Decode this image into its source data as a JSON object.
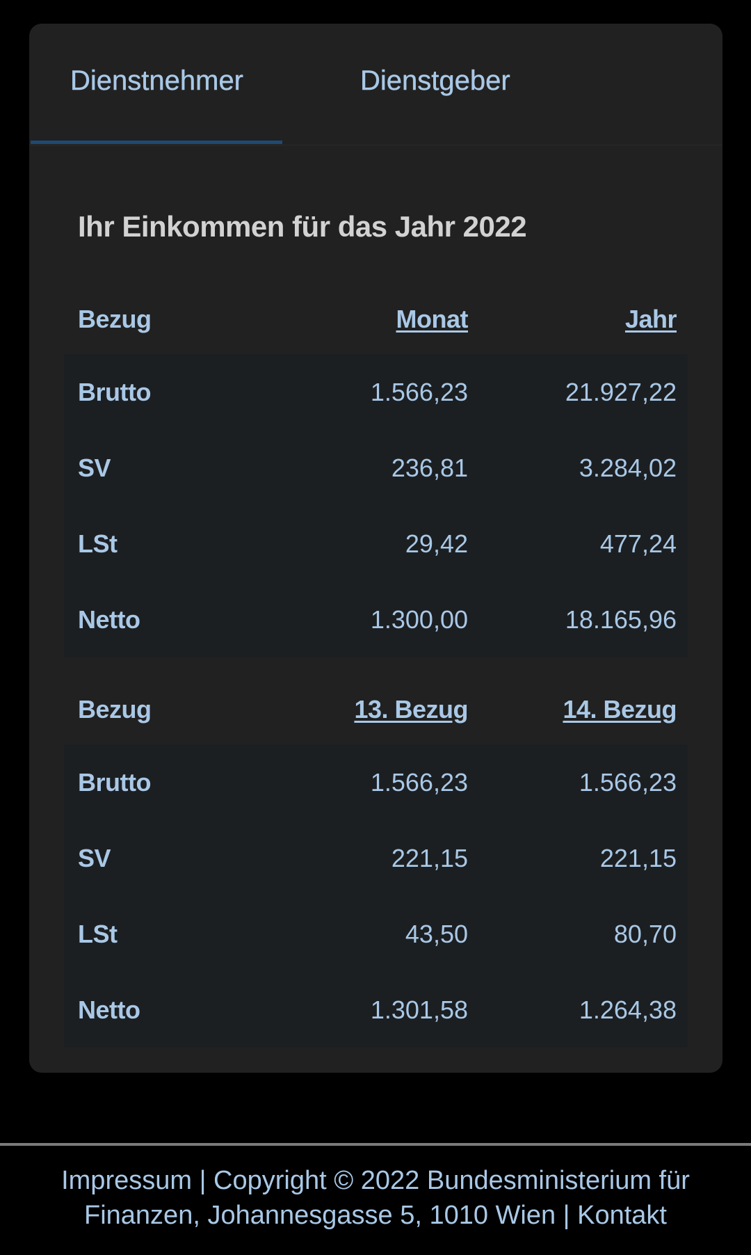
{
  "tabs": [
    {
      "label": "Dienstnehmer",
      "active": true
    },
    {
      "label": "Dienstgeber",
      "active": false
    }
  ],
  "section_title": "Ihr Einkommen für das Jahr 2022",
  "table1": {
    "headers": [
      "Bezug",
      "Monat",
      "Jahr"
    ],
    "rows": [
      {
        "label": "Brutto",
        "monat": "1.566,23",
        "jahr": "21.927,22"
      },
      {
        "label": "SV",
        "monat": "236,81",
        "jahr": "3.284,02"
      },
      {
        "label": "LSt",
        "monat": "29,42",
        "jahr": "477,24"
      },
      {
        "label": "Netto",
        "monat": "1.300,00",
        "jahr": "18.165,96"
      }
    ]
  },
  "table2": {
    "headers": [
      "Bezug",
      "13. Bezug",
      "14. Bezug"
    ],
    "rows": [
      {
        "label": "Brutto",
        "b13": "1.566,23",
        "b14": "1.566,23"
      },
      {
        "label": "SV",
        "b13": "221,15",
        "b14": "221,15"
      },
      {
        "label": "LSt",
        "b13": "43,50",
        "b14": "80,70"
      },
      {
        "label": "Netto",
        "b13": "1.301,58",
        "b14": "1.264,38"
      }
    ]
  },
  "footer": {
    "impressum": "Impressum",
    "sep": " | ",
    "copyright_line1": "Copyright © 2022 Bundesministerium für",
    "copyright_line2": "Finanzen, Johannesgasse 5, 1010 Wien",
    "kontakt": "Kontakt"
  },
  "colors": {
    "background": "#000000",
    "card": "#212121",
    "accent_text": "#a9c8e6",
    "tab_indicator": "#1e4a72",
    "row_bg": "#1c1f22"
  }
}
